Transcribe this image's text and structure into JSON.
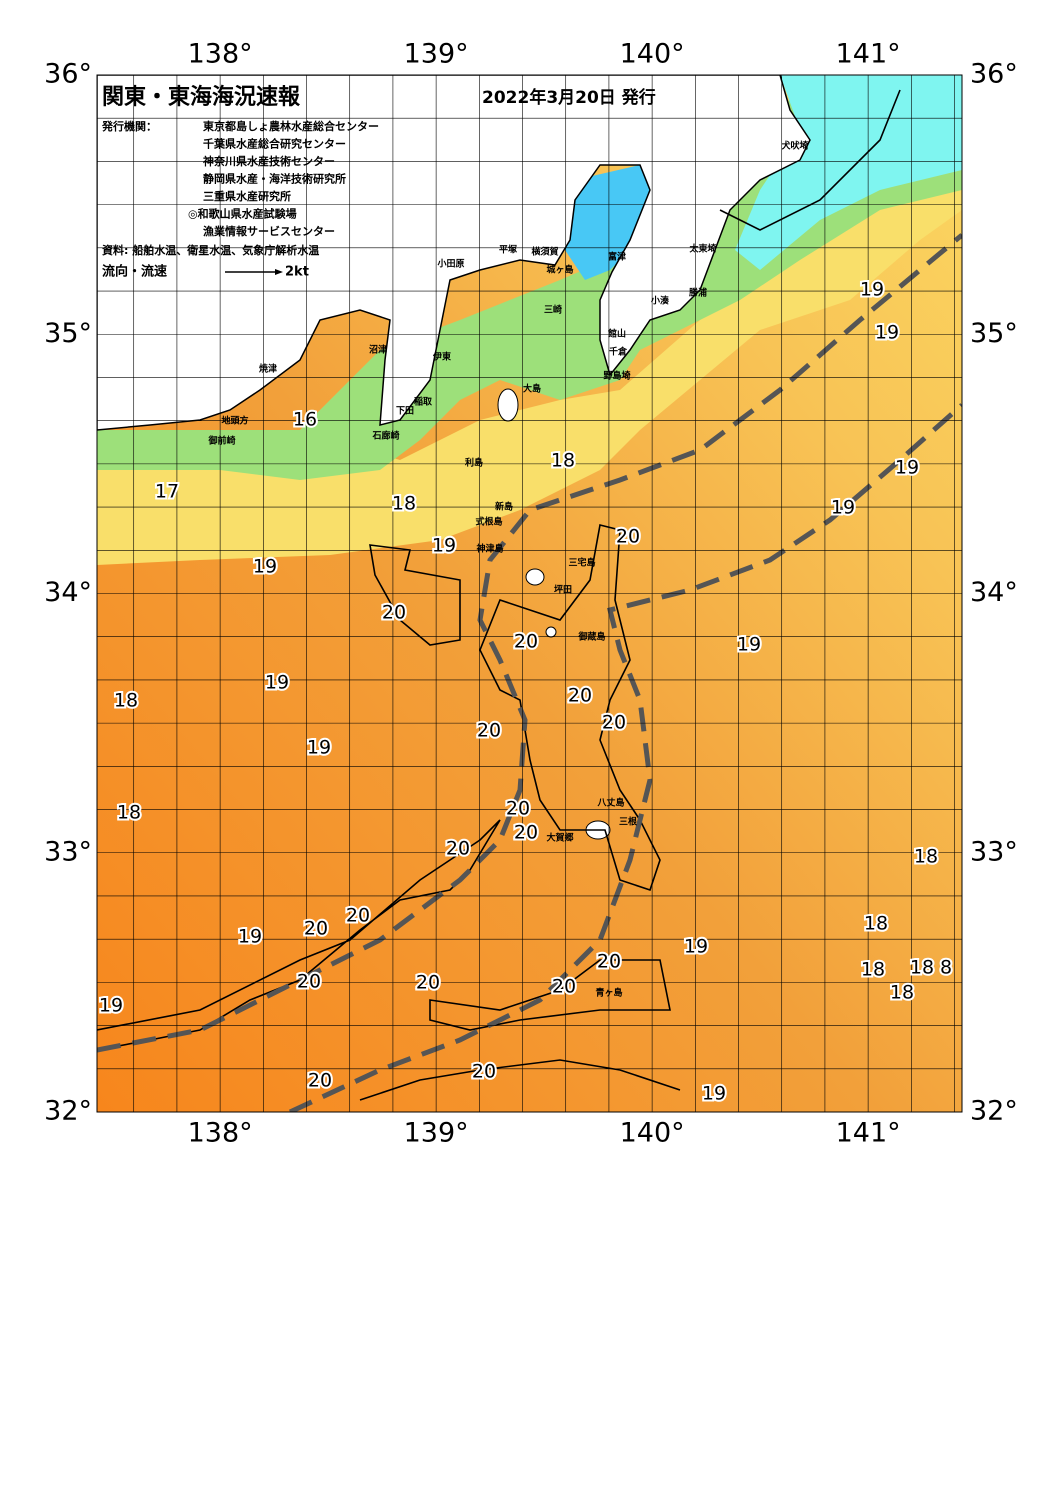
{
  "header": {
    "title": "関東・東海海況速報",
    "date": "2022年3月20日 発行"
  },
  "issuers": {
    "label": "発行機関：",
    "names": [
      "東京都島しょ農林水産総合センター",
      "千葉県水産総合研究センター",
      "神奈川県水産技術センター",
      "静岡県水産・海洋技術研究所",
      "三重県水産研究所",
      "◎和歌山県水産試験場",
      "漁業情報サービスセンター"
    ]
  },
  "source": "資料: 船舶水温、衛星水温、気象庁解析水温",
  "legend": {
    "label": "流向・流速",
    "speed": "2kt"
  },
  "axes": {
    "lon_top": [
      {
        "value": 138,
        "label": "138°"
      },
      {
        "value": 139,
        "label": "139°"
      },
      {
        "value": 140,
        "label": "140°"
      },
      {
        "value": 141,
        "label": "141°"
      }
    ],
    "lon_bottom": [
      {
        "value": 138,
        "label": "138°"
      },
      {
        "value": 139,
        "label": "139°"
      },
      {
        "value": 140,
        "label": "140°"
      },
      {
        "value": 141,
        "label": "141°"
      }
    ],
    "lat_left": [
      {
        "value": 36,
        "label": "36°"
      },
      {
        "value": 35,
        "label": "35°"
      },
      {
        "value": 34,
        "label": "34°"
      },
      {
        "value": 33,
        "label": "33°"
      },
      {
        "value": 32,
        "label": "32°"
      }
    ],
    "lat_right": [
      {
        "value": 36,
        "label": "36°"
      },
      {
        "value": 35,
        "label": "35°"
      },
      {
        "value": 34,
        "label": "34°"
      },
      {
        "value": 33,
        "label": "33°"
      },
      {
        "value": 32,
        "label": "32°"
      }
    ]
  },
  "temperature_labels": [
    19,
    19,
    16,
    18,
    19,
    17,
    18,
    19,
    20,
    19,
    19,
    20,
    20,
    19,
    19,
    18,
    20,
    20,
    20,
    19,
    18,
    20,
    20,
    20,
    18,
    20,
    18,
    20,
    19,
    19,
    20,
    18,
    18,
    8,
    20,
    20,
    20,
    18,
    19,
    20,
    20,
    19
  ],
  "place_names": [
    "犬吠埼",
    "太東埼",
    "小田原",
    "平塚",
    "横須賀",
    "富津",
    "城ヶ島",
    "勝浦",
    "小湊",
    "三崎",
    "館山",
    "千倉",
    "野島埼",
    "焼津",
    "沼津",
    "伊東",
    "大島",
    "稲取",
    "下田",
    "石廊崎",
    "地頭方",
    "御前崎",
    "利島",
    "新島",
    "式根島",
    "神津島",
    "三宅島",
    "坪田",
    "御蔵島",
    "八丈島",
    "三根",
    "大賀郷",
    "青ヶ島"
  ]
}
